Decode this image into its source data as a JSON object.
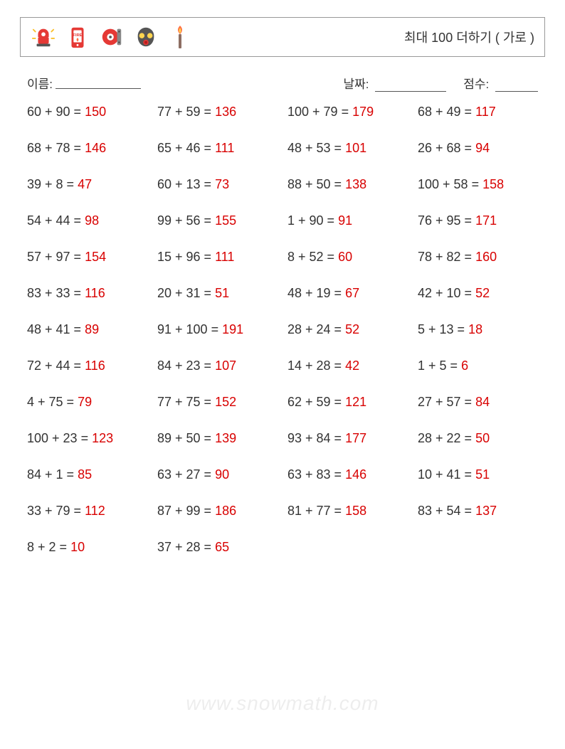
{
  "header": {
    "title": "최대 100 더하기 ( 가로 )",
    "icons": [
      {
        "name": "alarm-icon"
      },
      {
        "name": "phone-fire-icon"
      },
      {
        "name": "bell-icon"
      },
      {
        "name": "gas-mask-icon"
      },
      {
        "name": "match-icon"
      }
    ]
  },
  "info": {
    "name_label": "이름:",
    "date_label": "날짜:",
    "score_label": "점수:",
    "name_blank_width": 120,
    "date_blank_width": 100,
    "score_blank_width": 60
  },
  "colors": {
    "text": "#333333",
    "answer": "#d80000",
    "border": "#999999",
    "background": "#ffffff",
    "watermark": "rgba(0,0,0,0.07)"
  },
  "typography": {
    "title_fontsize": 18,
    "info_fontsize": 17,
    "problem_fontsize": 18,
    "watermark_fontsize": 28
  },
  "problems": {
    "columns": 4,
    "rows": 13,
    "items": [
      {
        "a": 60,
        "b": 90,
        "sum": 150
      },
      {
        "a": 77,
        "b": 59,
        "sum": 136
      },
      {
        "a": 100,
        "b": 79,
        "sum": 179
      },
      {
        "a": 68,
        "b": 49,
        "sum": 117
      },
      {
        "a": 68,
        "b": 78,
        "sum": 146
      },
      {
        "a": 65,
        "b": 46,
        "sum": 111
      },
      {
        "a": 48,
        "b": 53,
        "sum": 101
      },
      {
        "a": 26,
        "b": 68,
        "sum": 94
      },
      {
        "a": 39,
        "b": 8,
        "sum": 47
      },
      {
        "a": 60,
        "b": 13,
        "sum": 73
      },
      {
        "a": 88,
        "b": 50,
        "sum": 138
      },
      {
        "a": 100,
        "b": 58,
        "sum": 158
      },
      {
        "a": 54,
        "b": 44,
        "sum": 98
      },
      {
        "a": 99,
        "b": 56,
        "sum": 155
      },
      {
        "a": 1,
        "b": 90,
        "sum": 91
      },
      {
        "a": 76,
        "b": 95,
        "sum": 171
      },
      {
        "a": 57,
        "b": 97,
        "sum": 154
      },
      {
        "a": 15,
        "b": 96,
        "sum": 111
      },
      {
        "a": 8,
        "b": 52,
        "sum": 60
      },
      {
        "a": 78,
        "b": 82,
        "sum": 160
      },
      {
        "a": 83,
        "b": 33,
        "sum": 116
      },
      {
        "a": 20,
        "b": 31,
        "sum": 51
      },
      {
        "a": 48,
        "b": 19,
        "sum": 67
      },
      {
        "a": 42,
        "b": 10,
        "sum": 52
      },
      {
        "a": 48,
        "b": 41,
        "sum": 89
      },
      {
        "a": 91,
        "b": 100,
        "sum": 191
      },
      {
        "a": 28,
        "b": 24,
        "sum": 52
      },
      {
        "a": 5,
        "b": 13,
        "sum": 18
      },
      {
        "a": 72,
        "b": 44,
        "sum": 116
      },
      {
        "a": 84,
        "b": 23,
        "sum": 107
      },
      {
        "a": 14,
        "b": 28,
        "sum": 42
      },
      {
        "a": 1,
        "b": 5,
        "sum": 6
      },
      {
        "a": 4,
        "b": 75,
        "sum": 79
      },
      {
        "a": 77,
        "b": 75,
        "sum": 152
      },
      {
        "a": 62,
        "b": 59,
        "sum": 121
      },
      {
        "a": 27,
        "b": 57,
        "sum": 84
      },
      {
        "a": 100,
        "b": 23,
        "sum": 123
      },
      {
        "a": 89,
        "b": 50,
        "sum": 139
      },
      {
        "a": 93,
        "b": 84,
        "sum": 177
      },
      {
        "a": 28,
        "b": 22,
        "sum": 50
      },
      {
        "a": 84,
        "b": 1,
        "sum": 85
      },
      {
        "a": 63,
        "b": 27,
        "sum": 90
      },
      {
        "a": 63,
        "b": 83,
        "sum": 146
      },
      {
        "a": 10,
        "b": 41,
        "sum": 51
      },
      {
        "a": 33,
        "b": 79,
        "sum": 112
      },
      {
        "a": 87,
        "b": 99,
        "sum": 186
      },
      {
        "a": 81,
        "b": 77,
        "sum": 158
      },
      {
        "a": 83,
        "b": 54,
        "sum": 137
      },
      {
        "a": 8,
        "b": 2,
        "sum": 10
      },
      {
        "a": 37,
        "b": 28,
        "sum": 65
      }
    ]
  },
  "watermark": "www.snowmath.com"
}
